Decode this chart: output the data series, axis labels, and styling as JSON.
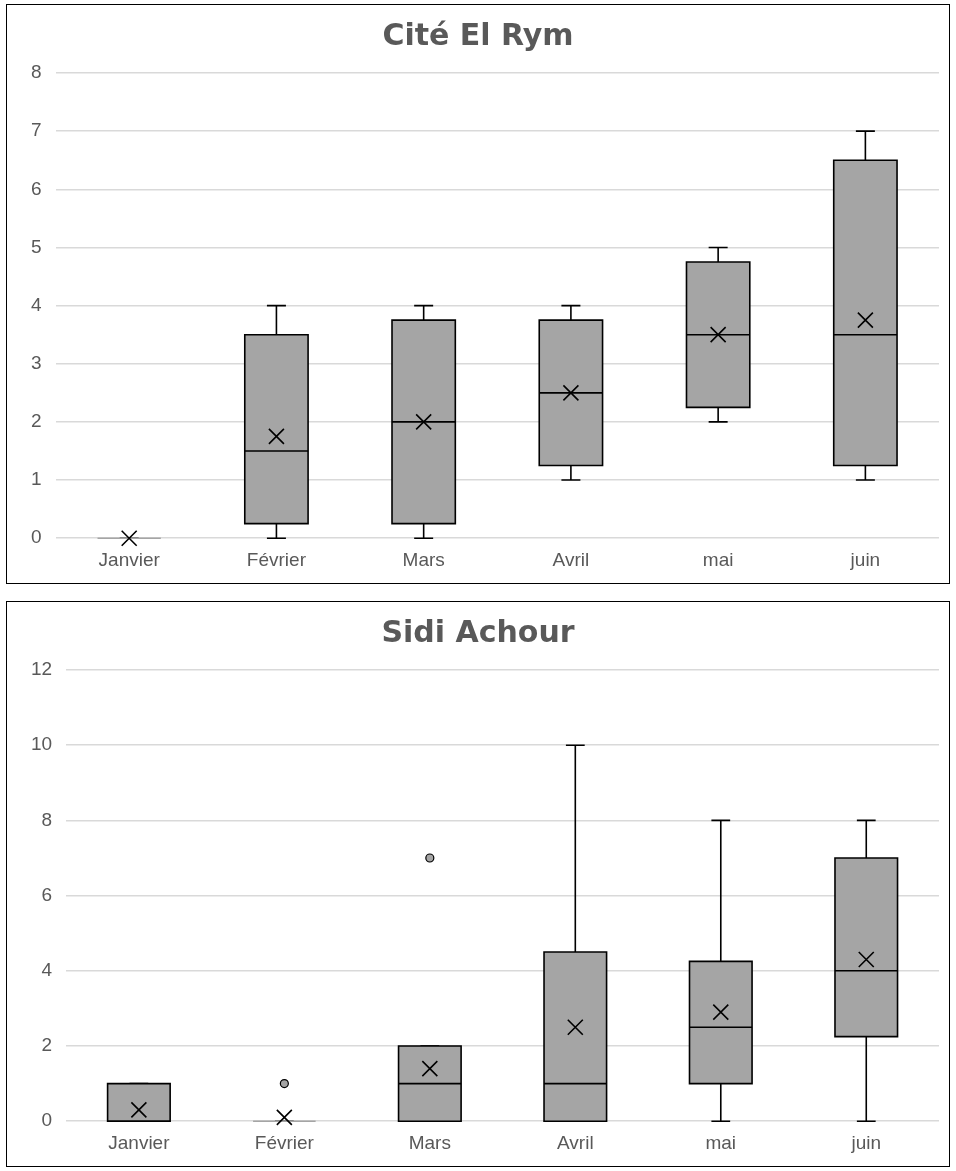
{
  "chart_data": [
    {
      "type": "box",
      "title": "Cité El Rym",
      "categories": [
        "Janvier",
        "Février",
        "Mars",
        "Avril",
        "mai",
        "juin"
      ],
      "color": "#a5a5a5",
      "ylim": [
        0,
        8
      ],
      "yticks": [
        0,
        1,
        2,
        3,
        4,
        5,
        6,
        7,
        8
      ],
      "grid": "y",
      "legend": false,
      "boxes": [
        {
          "low": 0,
          "q1": 0,
          "median": 0,
          "q3": 0,
          "high": 0,
          "mean": 0
        },
        {
          "low": 0,
          "q1": 0.25,
          "median": 1.5,
          "q3": 3.5,
          "high": 4,
          "mean": 1.75
        },
        {
          "low": 0,
          "q1": 0.25,
          "median": 2,
          "q3": 3.75,
          "high": 4,
          "mean": 2
        },
        {
          "low": 1,
          "q1": 1.25,
          "median": 2.5,
          "q3": 3.75,
          "high": 4,
          "mean": 2.5
        },
        {
          "low": 2,
          "q1": 2.25,
          "median": 3.5,
          "q3": 4.75,
          "high": 5,
          "mean": 3.5
        },
        {
          "low": 1,
          "q1": 1.25,
          "median": 3.5,
          "q3": 6.5,
          "high": 7,
          "mean": 3.75
        }
      ]
    },
    {
      "type": "box",
      "title": "Sidi Achour",
      "categories": [
        "Janvier",
        "Février",
        "Mars",
        "Avril",
        "mai",
        "juin"
      ],
      "color": "#a5a5a5",
      "ylim": [
        0,
        12
      ],
      "yticks": [
        0,
        2,
        4,
        6,
        8,
        10,
        12
      ],
      "grid": "y",
      "legend": false,
      "boxes": [
        {
          "low": 0,
          "q1": 0,
          "median": 0,
          "q3": 1,
          "high": 1,
          "mean": 0.3
        },
        {
          "low": 0,
          "q1": 0,
          "median": 0,
          "q3": 0,
          "high": 0,
          "mean": 0.1,
          "outliers": [
            1
          ]
        },
        {
          "low": 0,
          "q1": 0,
          "median": 1,
          "q3": 2,
          "high": 2,
          "mean": 1.4,
          "outliers": [
            7
          ]
        },
        {
          "low": 0,
          "q1": 0,
          "median": 1,
          "q3": 4.5,
          "high": 10,
          "mean": 2.5
        },
        {
          "low": 0,
          "q1": 1,
          "median": 2.5,
          "q3": 4.25,
          "high": 8,
          "mean": 2.9
        },
        {
          "low": 0,
          "q1": 2.25,
          "median": 4,
          "q3": 7,
          "high": 8,
          "mean": 4.3
        }
      ]
    }
  ]
}
